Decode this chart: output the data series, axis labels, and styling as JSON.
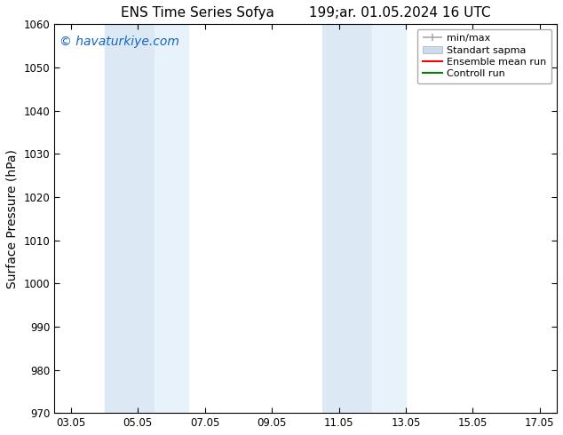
{
  "title_left": "ENS Time Series Sofya",
  "title_right": "199;ar. 01.05.2024 16 UTC",
  "ylabel": "Surface Pressure (hPa)",
  "ylim": [
    970,
    1060
  ],
  "yticks": [
    970,
    980,
    990,
    1000,
    1010,
    1020,
    1030,
    1040,
    1050,
    1060
  ],
  "xtick_labels": [
    "03.05",
    "05.05",
    "07.05",
    "09.05",
    "11.05",
    "13.05",
    "15.05",
    "17.05"
  ],
  "xtick_positions": [
    0,
    2,
    4,
    6,
    8,
    10,
    12,
    14
  ],
  "xlim": [
    -0.5,
    14.5
  ],
  "watermark": "© havaturkiye.com",
  "watermark_color": "#1565C0",
  "shaded_regions": [
    {
      "x_start": 1.0,
      "x_end": 2.5,
      "color": "#DCE9F5"
    },
    {
      "x_start": 2.5,
      "x_end": 3.5,
      "color": "#E8F2FA"
    },
    {
      "x_start": 7.5,
      "x_end": 9.0,
      "color": "#DCE9F5"
    },
    {
      "x_start": 9.0,
      "x_end": 10.0,
      "color": "#E8F2FA"
    }
  ],
  "background_color": "#FFFFFF",
  "legend_items": [
    {
      "label": "min/max",
      "color": "#AAAAAA",
      "style": "line_with_caps"
    },
    {
      "label": "Standart sapma",
      "color": "#CCDAEC",
      "style": "filled_bar"
    },
    {
      "label": "Ensemble mean run",
      "color": "#FF0000",
      "style": "line"
    },
    {
      "label": "Controll run",
      "color": "#008000",
      "style": "line"
    }
  ],
  "title_fontsize": 11,
  "tick_fontsize": 8.5,
  "ylabel_fontsize": 10,
  "watermark_fontsize": 10,
  "legend_fontsize": 8
}
